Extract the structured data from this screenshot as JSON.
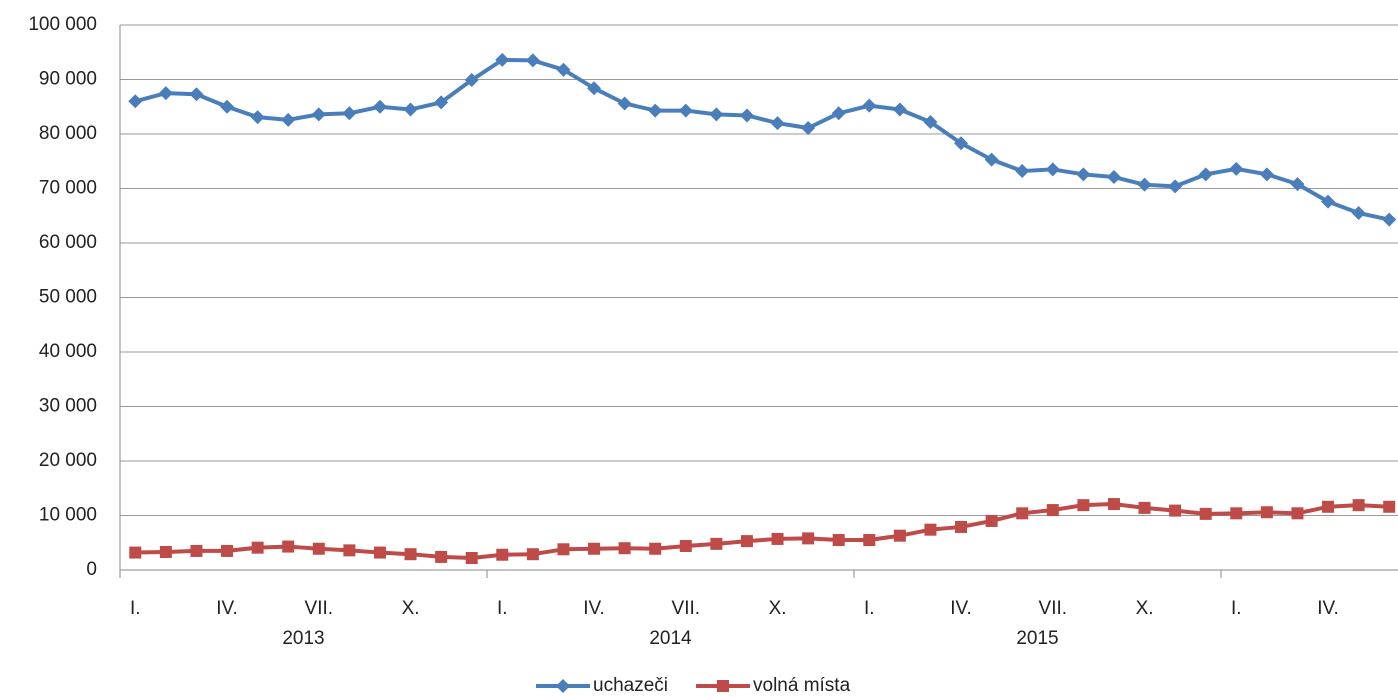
{
  "chart_data": {
    "type": "line",
    "categories": [
      "I.",
      null,
      null,
      "IV.",
      null,
      null,
      "VII.",
      null,
      null,
      "X.",
      null,
      null,
      "I.",
      null,
      null,
      "IV.",
      null,
      null,
      "VII.",
      null,
      null,
      "X.",
      null,
      null,
      "I.",
      null,
      null,
      "IV.",
      null,
      null,
      "VII.",
      null,
      null,
      "X.",
      null,
      null,
      "I.",
      null,
      null,
      "IV.",
      null,
      null
    ],
    "years": [
      "2013",
      "2014",
      "2015"
    ],
    "series": [
      {
        "name": "uchazeči",
        "color": "#4a7ebb",
        "marker": "diamond",
        "values": [
          86000,
          87500,
          87300,
          85000,
          83100,
          82600,
          83600,
          83800,
          85000,
          84500,
          85800,
          89900,
          93600,
          93500,
          91800,
          88400,
          85600,
          84300,
          84300,
          83600,
          83400,
          82000,
          81100,
          83800,
          85200,
          84500,
          82200,
          78300,
          75300,
          73200,
          73500,
          72600,
          72100,
          70700,
          70400,
          72600,
          73600,
          72600,
          70800,
          67600,
          65500,
          64300
        ]
      },
      {
        "name": "volná místa",
        "color": "#be4b48",
        "marker": "square",
        "values": [
          3200,
          3300,
          3500,
          3500,
          4100,
          4300,
          3900,
          3600,
          3200,
          2900,
          2400,
          2200,
          2800,
          2900,
          3800,
          3900,
          4000,
          3900,
          4400,
          4800,
          5300,
          5700,
          5800,
          5500,
          5500,
          6300,
          7400,
          7900,
          9000,
          10400,
          11000,
          11900,
          12100,
          11400,
          10900,
          10300,
          10400,
          10600,
          10400,
          11600,
          11900,
          11600
        ]
      }
    ],
    "ylim": [
      0,
      100000
    ],
    "yticks": [
      0,
      {
        "value": 10000,
        "label": "10 000"
      },
      {
        "value": 20000,
        "label": "20 000"
      },
      {
        "value": 30000,
        "label": "30 000"
      },
      {
        "value": 40000,
        "label": "40 000"
      },
      {
        "value": 50000,
        "label": "50 000"
      },
      {
        "value": 60000,
        "label": "60 000"
      },
      {
        "value": 70000,
        "label": "70 000"
      },
      {
        "value": 80000,
        "label": "80 000"
      },
      {
        "value": 90000,
        "label": "90 000"
      },
      {
        "value": 100000,
        "label": "100 000"
      }
    ],
    "grid": true,
    "legend": "bottom"
  }
}
